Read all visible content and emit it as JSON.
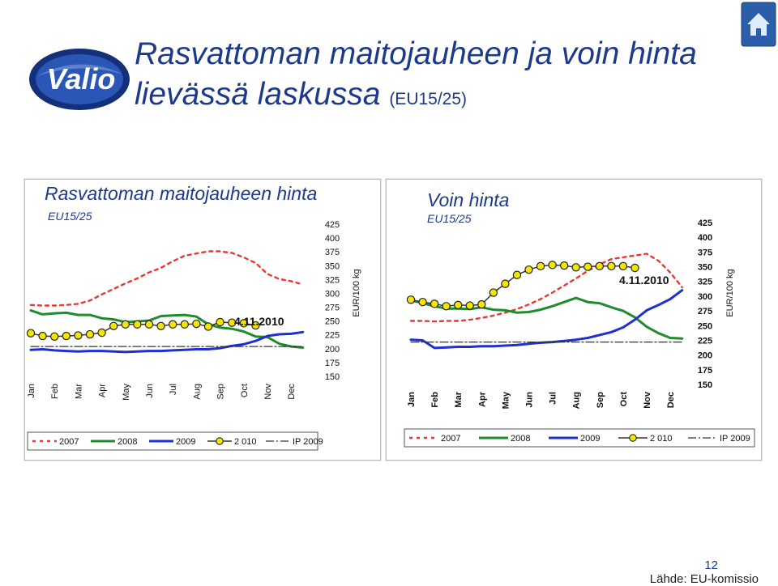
{
  "header": {
    "title_line1": "Rasvattoman maitojauheen ja voin hinta",
    "title_line2": "lievässä laskussa",
    "title_sub": "(EU15/25)",
    "logo_text": "Valio"
  },
  "colors": {
    "title_blue": "#1d3a8a",
    "s2007": "#e53935",
    "s2008": "#1e8c2e",
    "s2009": "#1f2fd0",
    "s2010_line": "#333333",
    "s2010_marker": "#f5e600",
    "ip2009": "#333333"
  },
  "footer": {
    "page": "12",
    "source": "Lähde: EU-komissio"
  },
  "chart_data": [
    {
      "type": "line",
      "title": "Rasvattoman maitojauheen hinta",
      "subtitle": "EU15/25",
      "ylabel": "EUR/100 kg",
      "ylim": [
        150,
        425
      ],
      "yticks": [
        425,
        400,
        375,
        350,
        325,
        300,
        275,
        250,
        225,
        200,
        175,
        150
      ],
      "categories": [
        "Jan",
        "Feb",
        "Mar",
        "Apr",
        "May",
        "Jun",
        "Jul",
        "Aug",
        "Sep",
        "Oct",
        "Nov",
        "Dec"
      ],
      "annotation": "4.11.2010",
      "legend": [
        "2007",
        "2008",
        "2009",
        "2 010",
        "IP 2009"
      ],
      "series": [
        {
          "name": "2007",
          "x": [
            0,
            0.5,
            1,
            1.5,
            2,
            2.5,
            3,
            3.5,
            4,
            4.5,
            5,
            5.5,
            6,
            6.5,
            7,
            7.5,
            8,
            8.5,
            9,
            9.5,
            10,
            10.5,
            11,
            11.5
          ],
          "values": [
            279,
            278,
            278,
            279,
            281,
            287,
            298,
            308,
            318,
            327,
            338,
            346,
            358,
            368,
            372,
            376,
            376,
            373,
            365,
            355,
            335,
            326,
            322,
            316
          ]
        },
        {
          "name": "2008",
          "x": [
            0,
            0.5,
            1,
            1.5,
            2,
            2.5,
            3,
            3.5,
            4,
            4.5,
            5,
            5.5,
            6,
            6.5,
            7,
            7.5,
            8,
            8.5,
            9,
            9.5,
            10,
            10.5,
            11,
            11.5
          ],
          "values": [
            269,
            262,
            264,
            265,
            261,
            261,
            255,
            253,
            248,
            249,
            251,
            259,
            260,
            261,
            258,
            244,
            238,
            236,
            231,
            222,
            221,
            209,
            204,
            202
          ]
        },
        {
          "name": "2009",
          "x": [
            0,
            0.5,
            1,
            1.5,
            2,
            2.5,
            3,
            3.5,
            4,
            4.5,
            5,
            5.5,
            6,
            6.5,
            7,
            7.5,
            8,
            8.5,
            9,
            9.5,
            10,
            10.5,
            11,
            11.5
          ],
          "values": [
            198,
            199,
            197,
            196,
            195,
            196,
            196,
            195,
            194,
            195,
            196,
            196,
            197,
            198,
            199,
            199,
            201,
            205,
            208,
            214,
            223,
            226,
            227,
            230
          ]
        },
        {
          "name": "2 010",
          "x": [
            0,
            0.5,
            1,
            1.5,
            2,
            2.5,
            3,
            3.5,
            4,
            4.5,
            5,
            5.5,
            6,
            6.5,
            7,
            7.5,
            8,
            8.5,
            9,
            9.5
          ],
          "values": [
            228,
            223,
            222,
            223,
            224,
            226,
            229,
            241,
            244,
            244,
            244,
            241,
            244,
            244,
            245,
            240,
            248,
            247,
            246,
            242
          ]
        },
        {
          "name": "IP 2009",
          "x": [
            0,
            11.5
          ],
          "values": [
            204,
            204
          ]
        }
      ]
    },
    {
      "type": "line",
      "title": "Voin hinta",
      "subtitle": "EU15/25",
      "ylabel": "EUR/100 kg",
      "ylim": [
        150,
        425
      ],
      "yticks": [
        425,
        400,
        375,
        350,
        325,
        300,
        275,
        250,
        225,
        200,
        175,
        150
      ],
      "categories": [
        "Jan",
        "Feb",
        "Mar",
        "Apr",
        "May",
        "Jun",
        "Jul",
        "Aug",
        "Sep",
        "Oct",
        "Nov",
        "Dec"
      ],
      "annotation": "4.11.2010",
      "legend": [
        "2007",
        "2008",
        "2009",
        "2 010",
        "IP 2009"
      ],
      "series": [
        {
          "name": "2007",
          "x": [
            0,
            0.5,
            1,
            1.5,
            2,
            2.5,
            3,
            3.5,
            4,
            4.5,
            5,
            5.5,
            6,
            6.5,
            7,
            7.5,
            8,
            8.5,
            9,
            9.5,
            10,
            10.5,
            11,
            11.5
          ],
          "values": [
            258,
            258,
            257,
            258,
            258,
            260,
            263,
            267,
            272,
            278,
            286,
            295,
            306,
            318,
            330,
            343,
            354,
            363,
            366,
            369,
            372,
            360,
            340,
            315
          ]
        },
        {
          "name": "2008",
          "x": [
            0,
            0.5,
            1,
            1.5,
            2,
            2.5,
            3,
            3.5,
            4,
            4.5,
            5,
            5.5,
            6,
            6.5,
            7,
            7.5,
            8,
            8.5,
            9,
            9.5,
            10,
            10.5,
            11,
            11.5
          ],
          "values": [
            293,
            288,
            283,
            279,
            279,
            278,
            281,
            277,
            276,
            272,
            273,
            277,
            283,
            290,
            297,
            290,
            288,
            281,
            275,
            264,
            248,
            237,
            229,
            228
          ]
        },
        {
          "name": "2009",
          "x": [
            0,
            0.5,
            1,
            1.5,
            2,
            2.5,
            3,
            3.5,
            4,
            4.5,
            5,
            5.5,
            6,
            6.5,
            7,
            7.5,
            8,
            8.5,
            9,
            9.5,
            10,
            10.5,
            11,
            11.5
          ],
          "values": [
            226,
            225,
            212,
            213,
            214,
            214,
            215,
            215,
            216,
            217,
            219,
            221,
            222,
            224,
            226,
            229,
            234,
            239,
            247,
            260,
            276,
            285,
            295,
            310
          ]
        },
        {
          "name": "2 010",
          "x": [
            0,
            0.5,
            1,
            1.5,
            2,
            2.5,
            3,
            3.5,
            4,
            4.5,
            5,
            5.5,
            6,
            6.5,
            7,
            7.5,
            8,
            8.5,
            9,
            9.5
          ],
          "values": [
            294,
            290,
            287,
            283,
            285,
            284,
            286,
            306,
            321,
            336,
            345,
            351,
            353,
            352,
            349,
            350,
            351,
            351,
            351,
            348
          ]
        },
        {
          "name": "IP 2009",
          "x": [
            0,
            11.5
          ],
          "values": [
            222,
            222
          ]
        }
      ]
    }
  ]
}
